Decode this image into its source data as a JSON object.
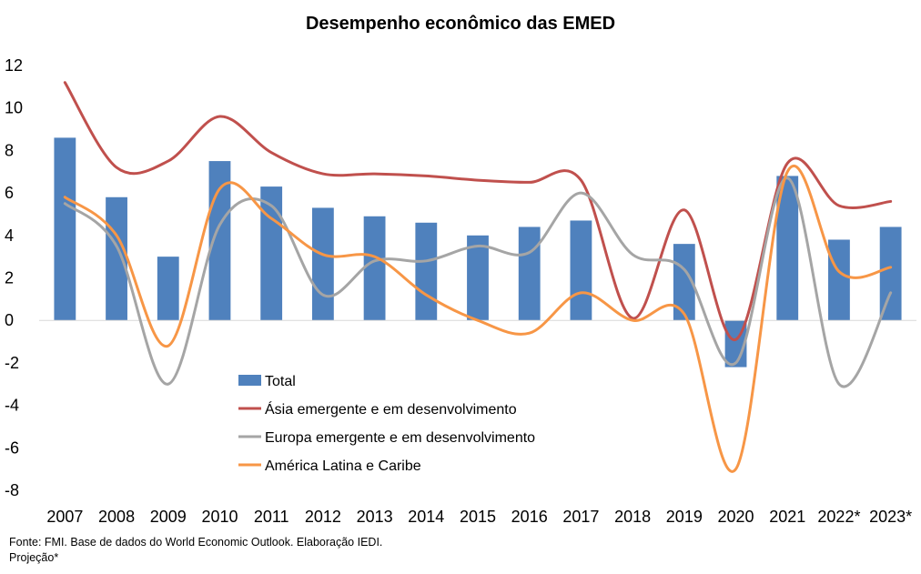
{
  "chart_data": {
    "type": "bar+line",
    "title": "Desempenho econômico das EMED",
    "categories": [
      "2007",
      "2008",
      "2009",
      "2010",
      "2011",
      "2012",
      "2013",
      "2014",
      "2015",
      "2016",
      "2017",
      "2018",
      "2019",
      "2020",
      "2021",
      "2022*",
      "2023*"
    ],
    "ylim": [
      -8,
      12
    ],
    "yticks": [
      12,
      10,
      8,
      6,
      4,
      2,
      0,
      -2,
      -4,
      -6,
      -8
    ],
    "grid": false,
    "legend_position": "bottom-left inside plot",
    "series": [
      {
        "name": "Total",
        "type": "bar",
        "color": "#4f81bd",
        "values": [
          8.6,
          5.8,
          3.0,
          7.5,
          6.3,
          5.3,
          4.9,
          4.6,
          4.0,
          4.4,
          4.7,
          0.0,
          3.6,
          -2.2,
          6.8,
          3.8,
          4.4
        ]
      },
      {
        "name": "Ásia emergente e em desenvolvimento",
        "type": "line",
        "color": "#c0504d",
        "values": [
          11.2,
          7.2,
          7.5,
          9.6,
          7.9,
          6.9,
          6.9,
          6.8,
          6.6,
          6.5,
          6.6,
          0.1,
          5.2,
          -0.9,
          7.4,
          5.4,
          5.6
        ]
      },
      {
        "name": "Europa emergente e em desenvolvimento",
        "type": "line",
        "color": "#a5a5a5",
        "values": [
          5.5,
          3.5,
          -3.0,
          4.5,
          5.4,
          1.2,
          2.8,
          2.8,
          3.5,
          3.2,
          6.0,
          3.1,
          2.4,
          -2.0,
          6.7,
          -3.0,
          1.3
        ]
      },
      {
        "name": "América Latina e Caribe",
        "type": "line",
        "color": "#f79646",
        "values": [
          5.8,
          4.0,
          -1.2,
          6.2,
          4.8,
          3.1,
          3.0,
          1.2,
          0.0,
          -0.6,
          1.3,
          0.0,
          0.3,
          -7.0,
          7.0,
          2.3,
          2.5
        ]
      }
    ]
  },
  "footer": {
    "source": "Fonte: FMI. Base de dados do World Economic Outlook. Elaboração IEDI.",
    "note": "Projeção*"
  }
}
